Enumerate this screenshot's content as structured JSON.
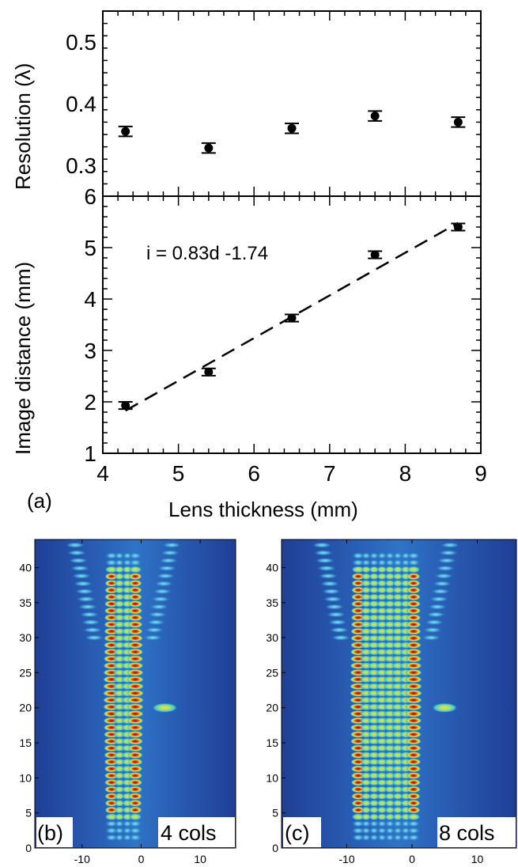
{
  "chart_data": [
    {
      "type": "scatter",
      "panel": "top",
      "ylabel": "Resolution (λ)",
      "ylim": [
        0.25,
        0.55
      ],
      "yticks": [
        "0.3",
        "0.4",
        "0.5"
      ],
      "series": [
        {
          "x": [
            4.3,
            5.4,
            6.5,
            7.6,
            8.7
          ],
          "y": [
            0.355,
            0.328,
            0.36,
            0.38,
            0.37
          ],
          "err": [
            0.008,
            0.008,
            0.008,
            0.008,
            0.008
          ]
        }
      ]
    },
    {
      "type": "scatter",
      "panel": "bottom",
      "ylabel": "Image distance (mm)",
      "xlabel": "Lens thickness (mm)",
      "xlim": [
        4,
        9
      ],
      "ylim": [
        1,
        6
      ],
      "xticks": [
        "4",
        "5",
        "6",
        "7",
        "8",
        "9"
      ],
      "yticks": [
        "1",
        "2",
        "3",
        "4",
        "5",
        "6"
      ],
      "annotation": "i =  0.83d -1.74",
      "series": [
        {
          "x": [
            4.3,
            5.4,
            6.5,
            7.6,
            8.7
          ],
          "y": [
            1.93,
            2.58,
            3.63,
            4.86,
            5.4
          ],
          "err": [
            0.07,
            0.07,
            0.07,
            0.07,
            0.07
          ]
        }
      ],
      "fit": {
        "slope": 0.83,
        "intercept": -1.74,
        "x_range": [
          4.3,
          8.7
        ],
        "style": "dashed"
      },
      "panel_label": "(a)"
    },
    {
      "type": "heatmap",
      "panel_label": "(b)",
      "corner_label": "4 cols",
      "xticks": [
        "-10",
        "0",
        "10"
      ],
      "yticks": [
        "0",
        "5",
        "10",
        "15",
        "20",
        "25",
        "30",
        "35",
        "40"
      ],
      "columns": 4,
      "colormap": [
        "#1e3a8f",
        "#2c6fc1",
        "#3fbfd8",
        "#f2e51f",
        "#e23d1a",
        "#8a0f10"
      ]
    },
    {
      "type": "heatmap",
      "panel_label": "(c)",
      "corner_label": "8 cols",
      "xticks": [
        "-10",
        "0",
        "10"
      ],
      "yticks": [
        "0",
        "5",
        "10",
        "15",
        "20",
        "25",
        "30",
        "35",
        "40"
      ],
      "columns": 8,
      "colormap": [
        "#1e3a8f",
        "#2c6fc1",
        "#3fbfd8",
        "#f2e51f",
        "#e23d1a",
        "#8a0f10"
      ]
    }
  ]
}
